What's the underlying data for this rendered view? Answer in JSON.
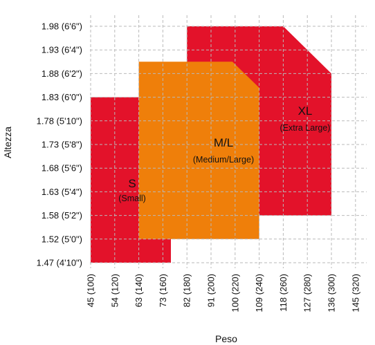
{
  "chart_data": {
    "type": "area",
    "xlabel": "Peso",
    "ylabel": "Altezza",
    "x_ticks": [
      "45 (100)",
      "54 (120)",
      "63 (140)",
      "73 (160)",
      "82 (180)",
      "91 (200)",
      "100 (220)",
      "109 (240)",
      "118 (260)",
      "127 (280)",
      "136 (300)",
      "145 (320)"
    ],
    "x_tick_values": [
      45,
      54,
      63,
      73,
      82,
      91,
      100,
      109,
      118,
      127,
      136,
      145
    ],
    "y_ticks": [
      "1.47 (4'10\")",
      "1.52 (5'0\")",
      "1.58 (5'2\")",
      "1.63 (5'4\")",
      "1.68 (5'6\")",
      "1.73 (5'8\")",
      "1.78 (5'10\")",
      "1.83 (6'0\")",
      "1.88 (6'2\")",
      "1.93 (6'4\")",
      "1.98 (6'6\")"
    ],
    "y_tick_values": [
      1.47,
      1.52,
      1.58,
      1.63,
      1.68,
      1.73,
      1.78,
      1.83,
      1.88,
      1.93,
      1.98
    ],
    "grid": true,
    "colors": {
      "red": "#e3122a",
      "orange": "#ef7f0a",
      "grid": "#b9b9b9"
    },
    "regions": [
      {
        "code": "XL",
        "name": "(Extra Large)",
        "color": "#e3122a",
        "polygon": [
          [
            82,
            1.98
          ],
          [
            118,
            1.98
          ],
          [
            136,
            1.88
          ],
          [
            136,
            1.58
          ],
          [
            82,
            1.58
          ]
        ]
      },
      {
        "code": "S",
        "name": "(Small)",
        "color": "#e3122a",
        "polygon": [
          [
            45,
            1.47
          ],
          [
            45,
            1.83
          ],
          [
            63,
            1.83
          ],
          [
            76,
            1.76
          ],
          [
            76,
            1.47
          ]
        ]
      },
      {
        "code": "M/L",
        "name": "(Medium/Large)",
        "color": "#ef7f0a",
        "polygon": [
          [
            63,
            1.52
          ],
          [
            63,
            1.905
          ],
          [
            99,
            1.905
          ],
          [
            109,
            1.85
          ],
          [
            109,
            1.52
          ]
        ]
      }
    ]
  }
}
